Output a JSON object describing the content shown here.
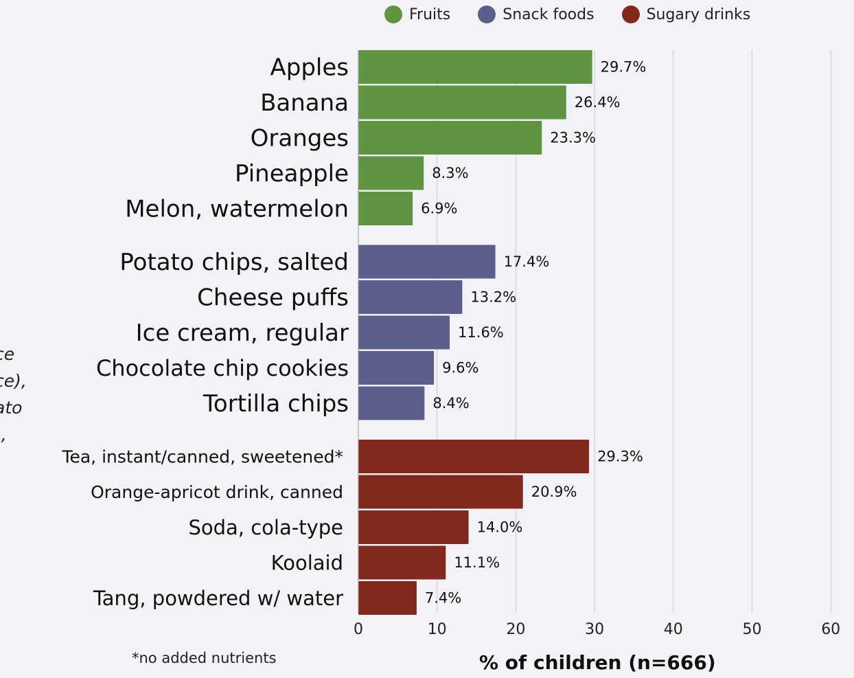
{
  "chart_data": {
    "type": "bar",
    "orientation": "horizontal",
    "xlabel": "% of children (n=666)",
    "xlim": [
      0,
      60
    ],
    "xticks": [
      "0",
      "10",
      "20",
      "30",
      "40",
      "50",
      "60"
    ],
    "grid": "vertical",
    "legend_position": "top",
    "footnote": "*no added nutrients",
    "clipped_text": [
      "ce",
      "ce),",
      "ato",
      "),"
    ],
    "series": [
      {
        "name": "Fruits",
        "color": "#5e9442",
        "categories": [
          "Apples",
          "Banana",
          "Oranges",
          "Pineapple",
          "Melon, watermelon"
        ],
        "values": [
          29.7,
          26.4,
          23.3,
          8.3,
          6.9
        ],
        "value_labels": [
          "29.7%",
          "26.4%",
          "23.3%",
          "8.3%",
          "6.9%"
        ]
      },
      {
        "name": "Snack foods",
        "color": "#5c5e8b",
        "categories": [
          "Potato chips, salted",
          "Cheese puffs",
          "Ice cream, regular",
          "Chocolate chip cookies",
          "Tortilla chips"
        ],
        "values": [
          17.4,
          13.2,
          11.6,
          9.6,
          8.4
        ],
        "value_labels": [
          "17.4%",
          "13.2%",
          "11.6%",
          "9.6%",
          "8.4%"
        ]
      },
      {
        "name": "Sugary drinks",
        "color": "#82291e",
        "categories": [
          "Tea, instant/canned, sweetened*",
          "Orange-apricot drink, canned",
          "Soda, cola-type",
          "Koolaid",
          "Tang, powdered w/ water"
        ],
        "values": [
          29.3,
          20.9,
          14.0,
          11.1,
          7.4
        ],
        "value_labels": [
          "29.3%",
          "20.9%",
          "14.0%",
          "11.1%",
          "7.4%"
        ]
      }
    ]
  }
}
